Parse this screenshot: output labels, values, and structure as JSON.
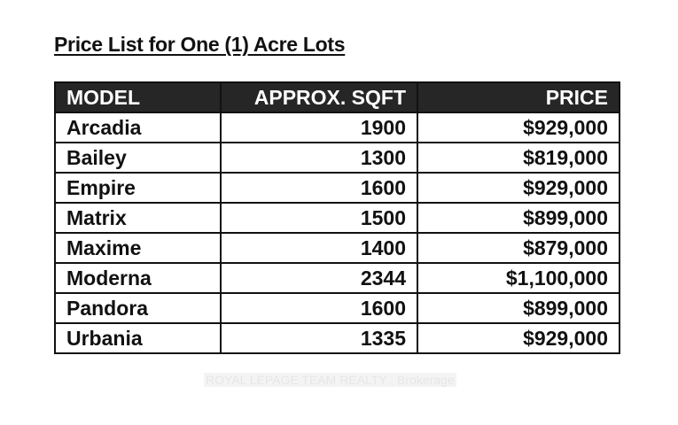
{
  "title": "Price List for One (1) Acre Lots",
  "table": {
    "headers": [
      "MODEL",
      "APPROX. SQFT",
      "PRICE"
    ],
    "rows": [
      [
        "Arcadia",
        "1900",
        "$929,000"
      ],
      [
        "Bailey",
        "1300",
        "$819,000"
      ],
      [
        "Empire",
        "1600",
        "$929,000"
      ],
      [
        "Matrix",
        "1500",
        "$899,000"
      ],
      [
        "Maxime",
        "1400",
        "$879,000"
      ],
      [
        "Moderna",
        "2344",
        "$1,100,000"
      ],
      [
        "Pandora",
        "1600",
        "$899,000"
      ],
      [
        "Urbania",
        "1335",
        "$929,000"
      ]
    ]
  },
  "watermark": "ROYAL LEPAGE TEAM REALTY , Brokerage"
}
